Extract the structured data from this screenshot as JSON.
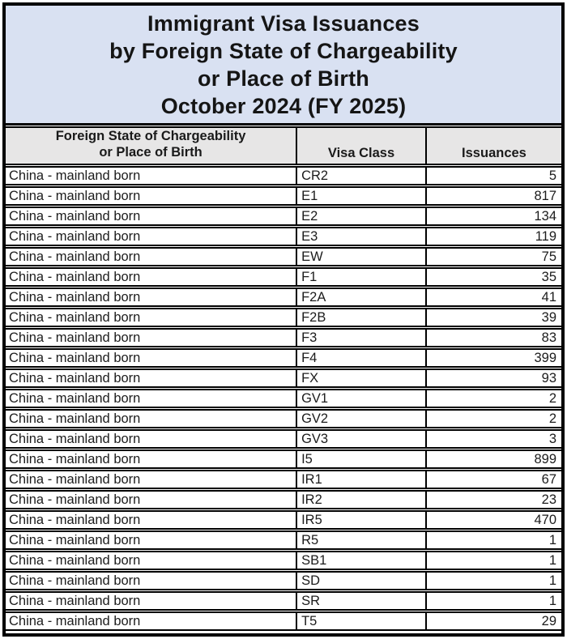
{
  "document": {
    "title_lines": [
      "Immigrant Visa Issuances",
      "by Foreign State of Chargeability",
      "or Place of Birth",
      "October 2024 (FY 2025)"
    ]
  },
  "table": {
    "headers": {
      "col1_line1": "Foreign State of Chargeability",
      "col1_line2": "or Place of Birth",
      "col2": "Visa Class",
      "col3": "Issuances"
    },
    "rows": [
      {
        "state": "China - mainland born",
        "visa_class": "CR2",
        "issuances": "5"
      },
      {
        "state": "China - mainland born",
        "visa_class": "E1",
        "issuances": "817"
      },
      {
        "state": "China - mainland born",
        "visa_class": "E2",
        "issuances": "134"
      },
      {
        "state": "China - mainland born",
        "visa_class": "E3",
        "issuances": "119"
      },
      {
        "state": "China - mainland born",
        "visa_class": "EW",
        "issuances": "75"
      },
      {
        "state": "China - mainland born",
        "visa_class": "F1",
        "issuances": "35"
      },
      {
        "state": "China - mainland born",
        "visa_class": "F2A",
        "issuances": "41"
      },
      {
        "state": "China - mainland born",
        "visa_class": "F2B",
        "issuances": "39"
      },
      {
        "state": "China - mainland born",
        "visa_class": "F3",
        "issuances": "83"
      },
      {
        "state": "China - mainland born",
        "visa_class": "F4",
        "issuances": "399"
      },
      {
        "state": "China - mainland born",
        "visa_class": "FX",
        "issuances": "93"
      },
      {
        "state": "China - mainland born",
        "visa_class": "GV1",
        "issuances": "2"
      },
      {
        "state": "China - mainland born",
        "visa_class": "GV2",
        "issuances": "2"
      },
      {
        "state": "China - mainland born",
        "visa_class": "GV3",
        "issuances": "3"
      },
      {
        "state": "China - mainland born",
        "visa_class": "I5",
        "issuances": "899"
      },
      {
        "state": "China - mainland born",
        "visa_class": "IR1",
        "issuances": "67"
      },
      {
        "state": "China - mainland born",
        "visa_class": "IR2",
        "issuances": "23"
      },
      {
        "state": "China - mainland born",
        "visa_class": "IR5",
        "issuances": "470"
      },
      {
        "state": "China - mainland born",
        "visa_class": "R5",
        "issuances": "1"
      },
      {
        "state": "China - mainland born",
        "visa_class": "SB1",
        "issuances": "1"
      },
      {
        "state": "China - mainland born",
        "visa_class": "SD",
        "issuances": "1"
      },
      {
        "state": "China - mainland born",
        "visa_class": "SR",
        "issuances": "1"
      },
      {
        "state": "China - mainland born",
        "visa_class": "T5",
        "issuances": "29"
      }
    ]
  },
  "colors": {
    "title_background": "#d9e1f2",
    "header_background": "#e7e6e6",
    "border": "#000000",
    "text": "#1a1a1a"
  }
}
